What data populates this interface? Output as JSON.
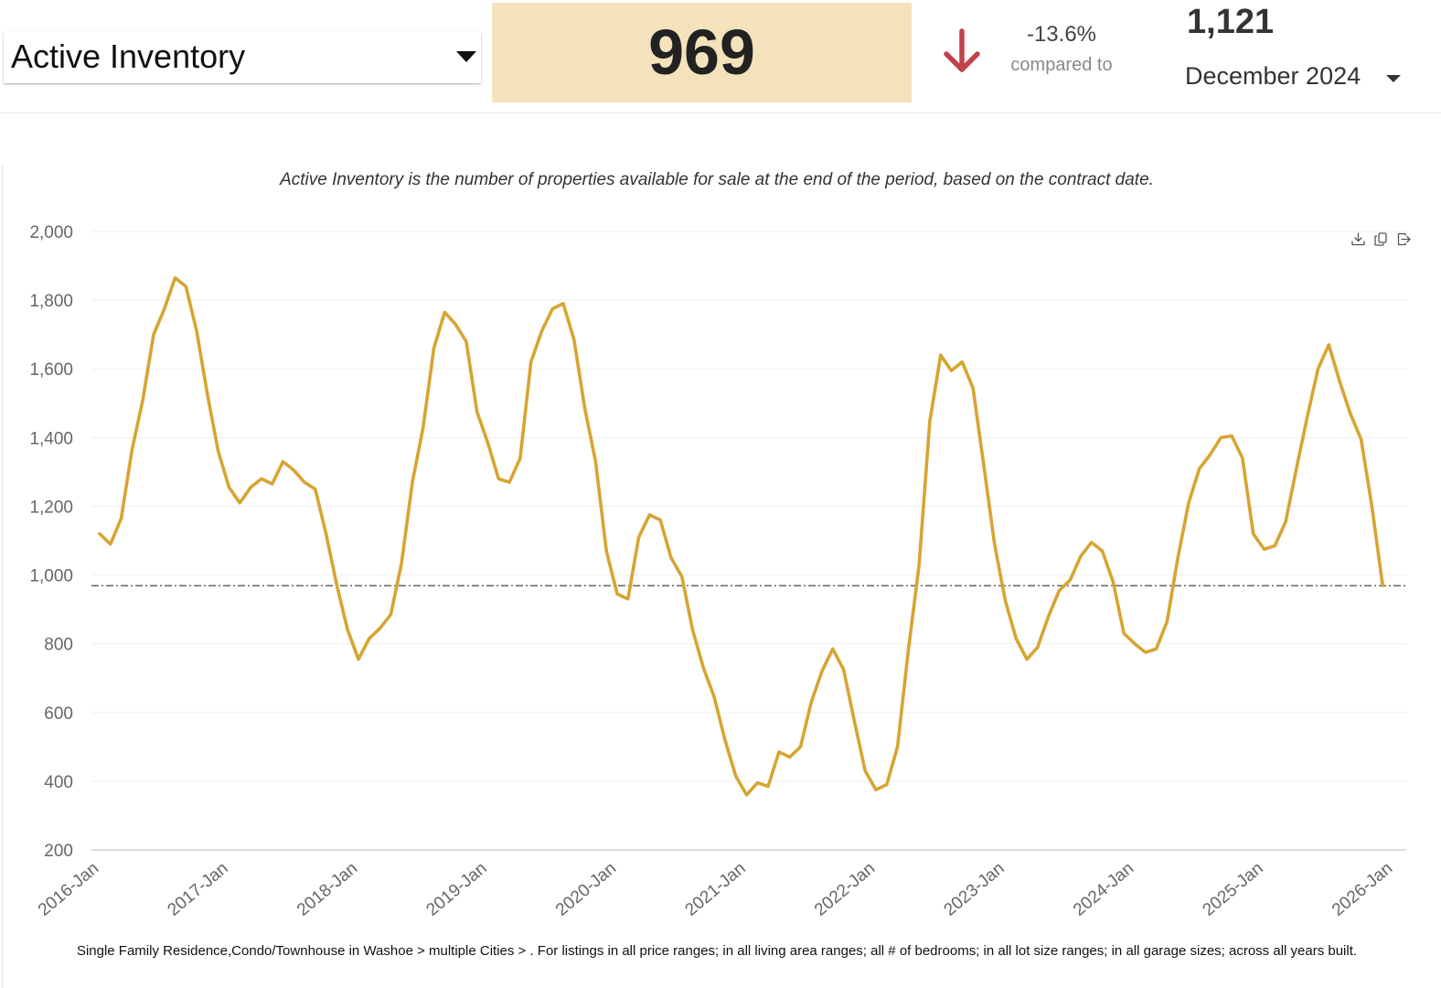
{
  "header": {
    "metric_selector": {
      "label": "Active Inventory"
    },
    "value": "969",
    "change": {
      "percent": "-13.6%",
      "direction": "down",
      "label": "compared to",
      "color": "#c0434a"
    },
    "compare_value": "1,121",
    "period_selector": {
      "label": "December 2024"
    },
    "highlight_color": "#f3e2bb"
  },
  "description": "Active Inventory is the number of properties available for sale at the end of the period, based on the contract date.",
  "toolbar": {
    "icons": [
      "download-icon",
      "copy-icon",
      "export-icon"
    ]
  },
  "footnote": "Single Family Residence,Condo/Townhouse in Washoe > multiple Cities > . For listings in all price ranges; in all living area ranges; all # of bedrooms; in all lot size ranges; in all garage sizes; across all years built.",
  "chart_data": {
    "type": "line",
    "line_color": "#d6a532",
    "reference_line": {
      "value": 969,
      "style": "dash-dot",
      "color": "#333333"
    },
    "y_range": [
      200,
      2000
    ],
    "y_ticks": [
      200,
      400,
      600,
      800,
      1000,
      1200,
      1400,
      1600,
      1800,
      2000
    ],
    "y_tick_labels": [
      "200",
      "400",
      "600",
      "800",
      "1,000",
      "1,200",
      "1,400",
      "1,600",
      "1,800",
      "2,000"
    ],
    "x_tick_labels": [
      "2016-Jan",
      "2017-Jan",
      "2018-Jan",
      "2019-Jan",
      "2020-Jan",
      "2021-Jan",
      "2022-Jan",
      "2023-Jan",
      "2024-Jan",
      "2025-Jan",
      "2026-Jan"
    ],
    "x_range": [
      "2016-Jan",
      "2026-Jan"
    ],
    "grid": true,
    "legend": "none",
    "series": [
      {
        "values": [
          1120,
          1090,
          1165,
          1365,
          1510,
          1700,
          1775,
          1865,
          1840,
          1710,
          1525,
          1360,
          1255,
          1210,
          1255,
          1280,
          1265,
          1330,
          1305,
          1270,
          1250,
          1120,
          970,
          840,
          755,
          815,
          845,
          885,
          1035,
          1270,
          1430,
          1660,
          1765,
          1730,
          1680,
          1475,
          1385,
          1280,
          1270,
          1340,
          1620,
          1710,
          1775,
          1790,
          1685,
          1485,
          1330,
          1070,
          945,
          930,
          1110,
          1175,
          1160,
          1050,
          995,
          840,
          730,
          645,
          520,
          415,
          360,
          395,
          385,
          485,
          470,
          500,
          630,
          720,
          785,
          725,
          575,
          430,
          375,
          390,
          500,
          780,
          1030,
          1450,
          1640,
          1595,
          1620,
          1545,
          1320,
          1090,
          925,
          815,
          755,
          790,
          880,
          955,
          985,
          1055,
          1095,
          1070,
          980,
          830,
          800,
          775,
          785,
          865,
          1050,
          1210,
          1310,
          1350,
          1400,
          1405,
          1340,
          1120,
          1075,
          1085,
          1155,
          1310,
          1460,
          1600,
          1670,
          1565,
          1470,
          1395,
          1200,
          969
        ]
      }
    ]
  }
}
